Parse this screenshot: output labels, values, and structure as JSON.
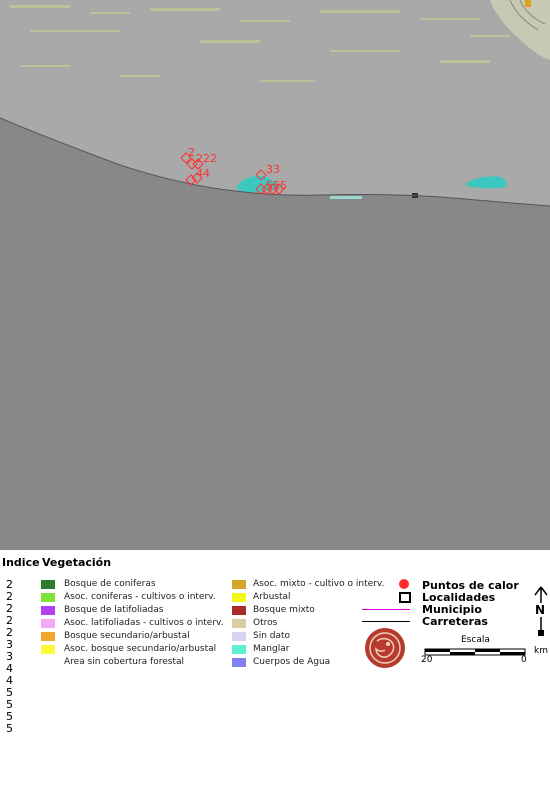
{
  "legend": {
    "indice_header": "Indice",
    "vegetacion_header": "Vegetación",
    "indices": [
      "2",
      "2",
      "2",
      "2",
      "2",
      "3",
      "3",
      "4",
      "4",
      "5",
      "5",
      "5",
      "5"
    ],
    "vegetation_left": [
      {
        "label": "Bosque de coniferas",
        "color": "#2b7a2b"
      },
      {
        "label": "Asoc. coniferas - cultivos o interv.",
        "color": "#7fe33a"
      },
      {
        "label": "Bosque de latifoliadas",
        "color": "#b040f0"
      },
      {
        "label": "Asoc. latifoliadas - cultivos o interv.",
        "color": "#f5a8f5"
      },
      {
        "label": "Bosque secundario/arbustal",
        "color": "#f5a62e"
      },
      {
        "label": "Asoc. bosque secundario/arbustal",
        "color": "#fafa3c"
      },
      {
        "label": "Area sin cobertura forestal",
        "color": ""
      }
    ],
    "vegetation_right": [
      {
        "label": "Asoc. mixto - cultivo o interv.",
        "color": "#d4a72a"
      },
      {
        "label": "Arbustal",
        "color": "#f5f518"
      },
      {
        "label": "Bosque mixto",
        "color": "#a82a2a"
      },
      {
        "label": "Otros",
        "color": "#d8cfa0"
      },
      {
        "label": "Sin dato",
        "color": "#d4d4f0"
      },
      {
        "label": "Manglar",
        "color": "#5ef0d4"
      },
      {
        "label": "Cuerpos de Agua",
        "color": "#8080f0"
      }
    ],
    "symbols": {
      "puntos_de_calor": "Puntos de calor",
      "localidades": "Localidades",
      "municipio": "Municipio",
      "carreteras": "Carreteras"
    },
    "scale": {
      "title": "Escala",
      "left_label": "20",
      "right_label": "0",
      "unit": "km"
    },
    "north_label": "N"
  },
  "map": {
    "hotspot_labels": [
      "2",
      "222",
      "33",
      "44",
      "555"
    ],
    "colors": {
      "ocean": "#888888",
      "land": "#a9a9a9",
      "hotspot": "#ff3333",
      "mangrove": "#3cc8c0"
    }
  }
}
